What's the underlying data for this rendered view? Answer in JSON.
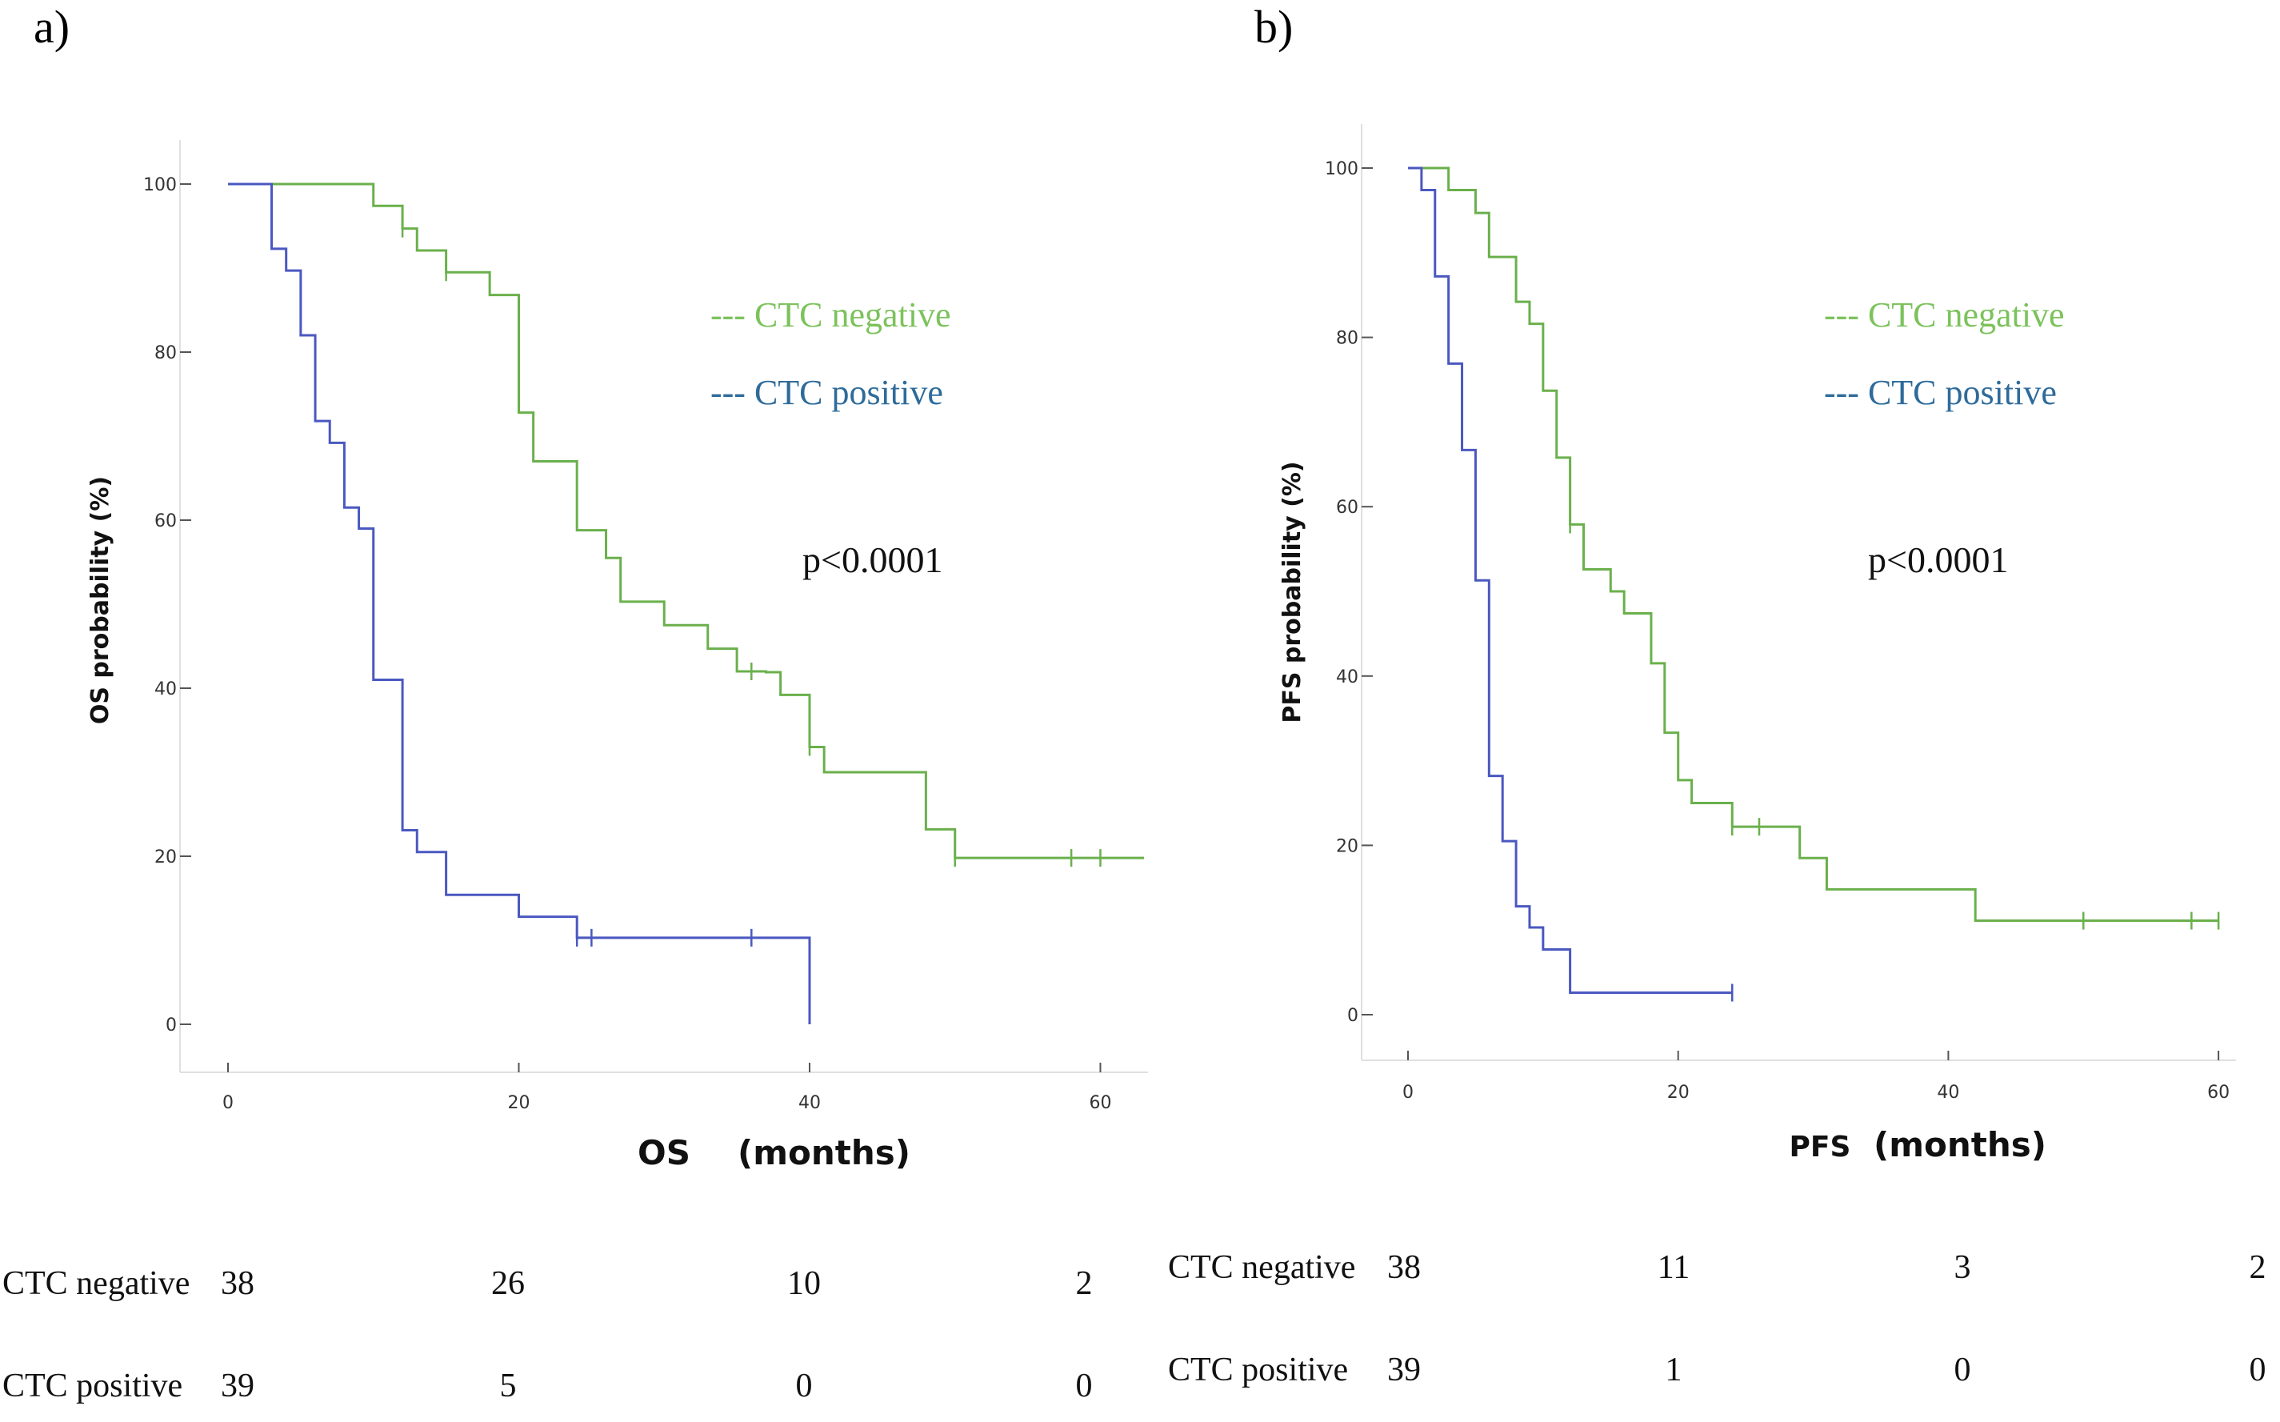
{
  "panels": [
    {
      "letter": "a)",
      "colors": {
        "negative": "#6ab04c",
        "positive": "#4a58c0",
        "legend_negative": "#7cc25c",
        "legend_positive": "#2e6b9a"
      },
      "chart_data": {
        "type": "line",
        "title": "",
        "ylabel": "OS probability (%)",
        "xlabel_abbrev": "OS",
        "xlabel_unit": "(months)",
        "xlim": [
          0,
          63
        ],
        "ylim": [
          0,
          100
        ],
        "x_ticks": [
          "0",
          "20",
          "40",
          "60"
        ],
        "y_ticks": [
          "0",
          "20",
          "40",
          "60",
          "80",
          "100"
        ],
        "p_value": "p<0.0001",
        "legend": {
          "negative": "--- CTC negative",
          "positive": "--- CTC positive"
        },
        "series": [
          {
            "name": "CTC negative",
            "steps": [
              [
                0,
                100
              ],
              [
                10,
                97.4
              ],
              [
                12,
                94.7
              ],
              [
                13,
                92.1
              ],
              [
                15,
                89.5
              ],
              [
                18,
                86.8
              ],
              [
                20,
                86.8
              ],
              [
                20,
                72.8
              ],
              [
                21,
                72.8
              ],
              [
                21,
                67
              ],
              [
                24,
                58.8
              ],
              [
                26,
                55.5
              ],
              [
                27,
                53
              ],
              [
                27,
                50.3
              ],
              [
                30,
                47.5
              ],
              [
                33,
                44.7
              ],
              [
                35,
                42
              ],
              [
                37,
                41.9
              ],
              [
                38,
                39.2
              ],
              [
                40,
                33
              ],
              [
                41,
                30
              ],
              [
                48,
                23.2
              ],
              [
                50,
                19.8
              ],
              [
                63,
                19.8
              ]
            ],
            "censored": [
              [
                12,
                94.7
              ],
              [
                15,
                89.5
              ],
              [
                36,
                42
              ],
              [
                40,
                33
              ],
              [
                50,
                19.8
              ],
              [
                58,
                19.8
              ],
              [
                60,
                19.8
              ]
            ]
          },
          {
            "name": "CTC positive",
            "steps": [
              [
                0,
                100
              ],
              [
                3,
                92.3
              ],
              [
                4,
                89.7
              ],
              [
                5,
                82
              ],
              [
                6,
                71.8
              ],
              [
                7,
                69.2
              ],
              [
                8,
                61.5
              ],
              [
                9,
                59
              ],
              [
                10,
                41
              ],
              [
                12,
                23.1
              ],
              [
                13,
                20.5
              ],
              [
                15,
                15.4
              ],
              [
                20,
                12.8
              ],
              [
                24,
                10.3
              ],
              [
                40,
                10.3
              ],
              [
                40,
                0
              ]
            ],
            "censored": [
              [
                24,
                10.3
              ],
              [
                25,
                10.3
              ],
              [
                36,
                10.3
              ]
            ]
          }
        ],
        "risk_table": {
          "rows": [
            {
              "label": "CTC negative",
              "values": [
                "38",
                "26",
                "10",
                "2"
              ]
            },
            {
              "label": "CTC positive",
              "values": [
                "39",
                "5",
                "0",
                "0"
              ]
            }
          ]
        }
      }
    },
    {
      "letter": "b)",
      "colors": {
        "negative": "#6ab04c",
        "positive": "#4a58c0",
        "legend_negative": "#7cc25c",
        "legend_positive": "#2e6b9a"
      },
      "chart_data": {
        "type": "line",
        "title": "",
        "ylabel": "PFS probability (%)",
        "xlabel_abbrev": "PFS",
        "xlabel_unit": "(months)",
        "xlim": [
          0,
          61
        ],
        "ylim": [
          0,
          100
        ],
        "x_ticks": [
          "0",
          "20",
          "40",
          "60"
        ],
        "y_ticks": [
          "0",
          "20",
          "40",
          "60",
          "80",
          "100"
        ],
        "p_value": "p<0.0001",
        "legend": {
          "negative": "--- CTC negative",
          "positive": "--- CTC positive"
        },
        "series": [
          {
            "name": "CTC negative",
            "steps": [
              [
                0,
                100
              ],
              [
                3,
                97.4
              ],
              [
                5,
                94.7
              ],
              [
                6,
                89.5
              ],
              [
                8,
                84.2
              ],
              [
                9,
                81.6
              ],
              [
                10,
                73.7
              ],
              [
                11,
                65.8
              ],
              [
                12,
                57.9
              ],
              [
                13,
                52.6
              ],
              [
                15,
                50
              ],
              [
                16,
                47.4
              ],
              [
                18,
                41.5
              ],
              [
                19,
                33.3
              ],
              [
                20,
                27.7
              ],
              [
                21,
                25
              ],
              [
                24,
                22.2
              ],
              [
                29,
                18.5
              ],
              [
                31,
                14.8
              ],
              [
                42,
                11.1
              ],
              [
                60,
                11.1
              ]
            ],
            "censored": [
              [
                12,
                57.9
              ],
              [
                24,
                22.2
              ],
              [
                26,
                22.2
              ],
              [
                50,
                11.1
              ],
              [
                58,
                11.1
              ],
              [
                60,
                11.1
              ]
            ]
          },
          {
            "name": "CTC positive",
            "steps": [
              [
                0,
                100
              ],
              [
                1,
                97.4
              ],
              [
                2,
                87.2
              ],
              [
                3,
                76.9
              ],
              [
                4,
                66.7
              ],
              [
                5,
                51.3
              ],
              [
                6,
                28.2
              ],
              [
                7,
                20.5
              ],
              [
                8,
                12.8
              ],
              [
                9,
                10.3
              ],
              [
                10,
                7.7
              ],
              [
                12,
                2.6
              ],
              [
                24,
                2.6
              ]
            ],
            "censored": [
              [
                24,
                2.6
              ]
            ]
          }
        ],
        "risk_table": {
          "rows": [
            {
              "label": "CTC negative",
              "values": [
                "38",
                "11",
                "3",
                "2"
              ]
            },
            {
              "label": "CTC positive",
              "values": [
                "39",
                "1",
                "0",
                "0"
              ]
            }
          ]
        }
      }
    }
  ]
}
